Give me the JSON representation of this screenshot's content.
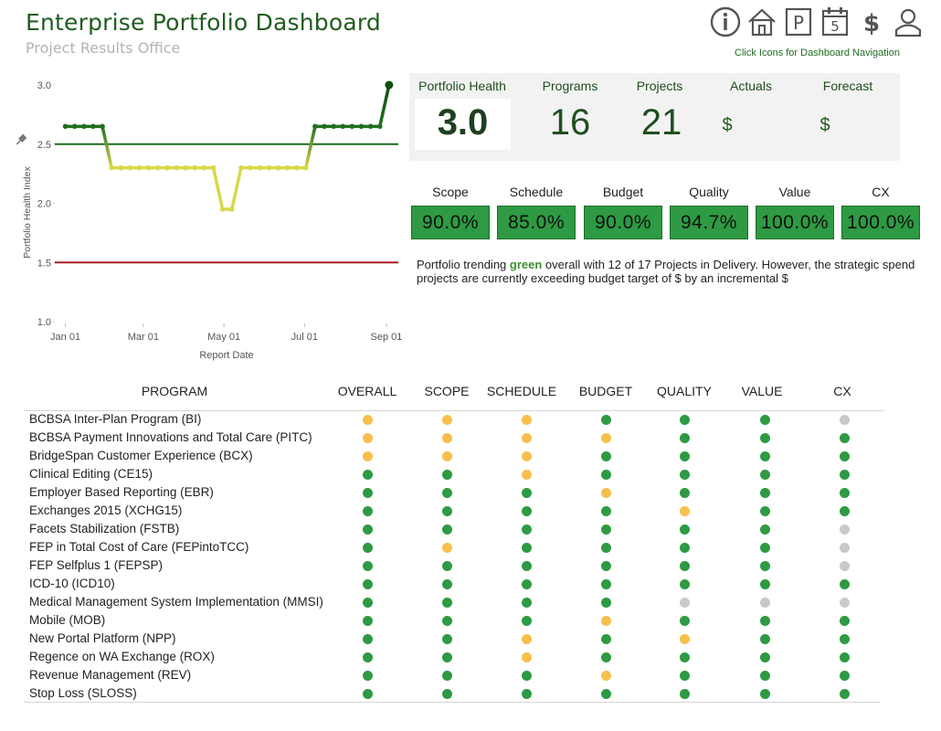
{
  "header": {
    "title": "Enterprise Portfolio Dashboard",
    "subtitle": "Project Results Office",
    "nav_hint": "Click Icons for Dashboard Navigation",
    "nav_icons": [
      "info-icon",
      "home-icon",
      "parking-p-icon",
      "calendar-5-icon",
      "dollar-icon",
      "user-icon"
    ],
    "calendar_day": "5",
    "p_letter": "P",
    "dollar_glyph": "$"
  },
  "kpis": {
    "portfolio_health": {
      "label": "Portfolio Health",
      "value": "3.0"
    },
    "programs": {
      "label": "Programs",
      "value": "16"
    },
    "projects": {
      "label": "Projects",
      "value": "21"
    },
    "actuals": {
      "label": "Actuals",
      "value": "$"
    },
    "forecast": {
      "label": "Forecast",
      "value": "$"
    }
  },
  "metrics": [
    {
      "label": "Scope",
      "value": "90.0%"
    },
    {
      "label": "Schedule",
      "value": "85.0%"
    },
    {
      "label": "Budget",
      "value": "90.0%"
    },
    {
      "label": "Quality",
      "value": "94.7%"
    },
    {
      "label": "Value",
      "value": "100.0%"
    },
    {
      "label": "CX",
      "value": "100.0%"
    }
  ],
  "summary": {
    "pre": "Portfolio trending ",
    "highlight": "green",
    "post": " overall with 12 of 17 Projects in Delivery. However, the strategic spend projects are currently exceeding budget target of $",
    "post2": " by an incremental $"
  },
  "colors": {
    "green": "#2e9a43",
    "dark_green": "#1f6b1f",
    "yellow": "#d8d84a",
    "orange": "#f8bf4c",
    "gray": "#c9c9c9",
    "threshold_green": "#1f6b1f",
    "threshold_red": "#a51c1c"
  },
  "chart_data": {
    "type": "line",
    "title": "",
    "xlabel": "Report Date",
    "ylabel": "Portfolio Health Index",
    "ylim": [
      1.0,
      3.0
    ],
    "yticks": [
      "1.0",
      "1.5",
      "2.0",
      "2.5",
      "3.0"
    ],
    "xticks": [
      "Jan 01",
      "Mar 01",
      "May 01",
      "Jul 01",
      "Sep 01"
    ],
    "x": [
      "2015-01-01",
      "2015-01-08",
      "2015-01-15",
      "2015-01-22",
      "2015-01-29",
      "2015-02-05",
      "2015-02-12",
      "2015-02-19",
      "2015-02-26",
      "2015-03-05",
      "2015-03-12",
      "2015-03-19",
      "2015-03-26",
      "2015-04-02",
      "2015-04-09",
      "2015-04-16",
      "2015-04-23",
      "2015-04-30",
      "2015-05-07",
      "2015-05-14",
      "2015-05-21",
      "2015-05-28",
      "2015-06-04",
      "2015-06-11",
      "2015-06-18",
      "2015-06-25",
      "2015-07-02",
      "2015-07-09",
      "2015-07-16",
      "2015-07-23",
      "2015-07-30",
      "2015-08-06",
      "2015-08-13",
      "2015-08-20",
      "2015-08-27",
      "2015-09-03"
    ],
    "y": [
      2.65,
      2.65,
      2.65,
      2.65,
      2.65,
      2.3,
      2.3,
      2.3,
      2.3,
      2.3,
      2.3,
      2.3,
      2.3,
      2.3,
      2.3,
      2.3,
      2.3,
      1.95,
      1.95,
      2.3,
      2.3,
      2.3,
      2.3,
      2.3,
      2.3,
      2.3,
      2.3,
      2.65,
      2.65,
      2.65,
      2.65,
      2.65,
      2.65,
      2.65,
      2.65,
      3.0
    ],
    "reference_lines": [
      {
        "value": 2.5,
        "color": "#1f6b1f"
      },
      {
        "value": 1.5,
        "color": "#a51c1c"
      }
    ],
    "color_scale": "green-yellow by value",
    "grid": false
  },
  "table": {
    "headers": [
      "PROGRAM",
      "OVERALL",
      "SCOPE",
      "SCHEDULE",
      "BUDGET",
      "QUALITY",
      "VALUE",
      "CX"
    ],
    "rows": [
      {
        "program": "BCBSA Inter-Plan Program (BI)",
        "status": [
          "orange",
          "orange",
          "orange",
          "green",
          "green",
          "green",
          "gray"
        ]
      },
      {
        "program": "BCBSA Payment Innovations and Total Care (PITC)",
        "status": [
          "orange",
          "orange",
          "orange",
          "orange",
          "green",
          "green",
          "green"
        ]
      },
      {
        "program": "BridgeSpan Customer Experience (BCX)",
        "status": [
          "orange",
          "orange",
          "orange",
          "green",
          "green",
          "green",
          "green"
        ]
      },
      {
        "program": "Clinical Editing (CE15)",
        "status": [
          "green",
          "green",
          "orange",
          "green",
          "green",
          "green",
          "green"
        ]
      },
      {
        "program": "Employer Based Reporting (EBR)",
        "status": [
          "green",
          "green",
          "green",
          "orange",
          "green",
          "green",
          "green"
        ]
      },
      {
        "program": "Exchanges 2015 (XCHG15)",
        "status": [
          "green",
          "green",
          "green",
          "green",
          "orange",
          "green",
          "green"
        ]
      },
      {
        "program": "Facets Stabilization (FSTB)",
        "status": [
          "green",
          "green",
          "green",
          "green",
          "green",
          "green",
          "gray"
        ]
      },
      {
        "program": "FEP in Total Cost of Care (FEPintoTCC)",
        "status": [
          "green",
          "orange",
          "green",
          "green",
          "green",
          "green",
          "gray"
        ]
      },
      {
        "program": "FEP Selfplus 1  (FEPSP)",
        "status": [
          "green",
          "green",
          "green",
          "green",
          "green",
          "green",
          "gray"
        ]
      },
      {
        "program": "ICD-10 (ICD10)",
        "status": [
          "green",
          "green",
          "green",
          "green",
          "green",
          "green",
          "green"
        ]
      },
      {
        "program": "Medical Management System Implementation (MMSI)",
        "status": [
          "green",
          "green",
          "green",
          "green",
          "gray",
          "gray",
          "gray"
        ]
      },
      {
        "program": "Mobile (MOB)",
        "status": [
          "green",
          "green",
          "green",
          "orange",
          "green",
          "green",
          "green"
        ]
      },
      {
        "program": "New Portal Platform (NPP)",
        "status": [
          "green",
          "green",
          "orange",
          "green",
          "orange",
          "green",
          "green"
        ]
      },
      {
        "program": "Regence on WA Exchange (ROX)",
        "status": [
          "green",
          "green",
          "orange",
          "green",
          "green",
          "green",
          "green"
        ]
      },
      {
        "program": "Revenue Management (REV)",
        "status": [
          "green",
          "green",
          "green",
          "orange",
          "green",
          "green",
          "green"
        ]
      },
      {
        "program": "Stop Loss (SLOSS)",
        "status": [
          "green",
          "green",
          "green",
          "green",
          "green",
          "green",
          "green"
        ]
      }
    ]
  }
}
